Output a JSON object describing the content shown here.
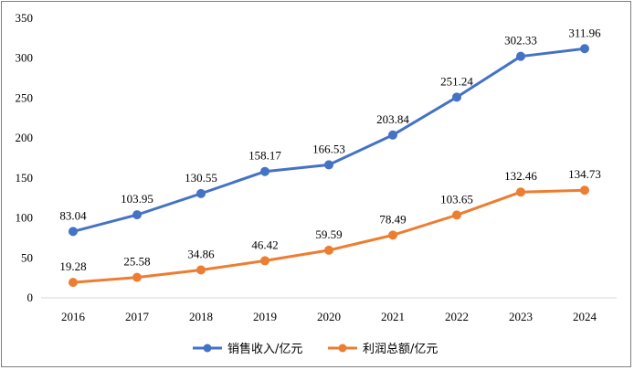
{
  "chart_data": {
    "type": "line",
    "title": "",
    "xlabel": "",
    "ylabel": "",
    "categories": [
      "2016",
      "2017",
      "2018",
      "2019",
      "2020",
      "2021",
      "2022",
      "2023",
      "2024"
    ],
    "ylim": [
      0,
      350
    ],
    "yticks": [
      0,
      50,
      100,
      150,
      200,
      250,
      300,
      350
    ],
    "grid": false,
    "legend_position": "bottom",
    "series": [
      {
        "name": "销售收入/亿元",
        "color": "#4472c4",
        "values": [
          83.04,
          103.95,
          130.55,
          158.17,
          166.53,
          203.84,
          251.24,
          302.33,
          311.96
        ],
        "labels": [
          "83.04",
          "103.95",
          "130.55",
          "158.17",
          "166.53",
          "203.84",
          "251.24",
          "302.33",
          "311.96"
        ]
      },
      {
        "name": "利润总额/亿元",
        "color": "#ed7d31",
        "values": [
          19.28,
          25.58,
          34.86,
          46.42,
          59.59,
          78.49,
          103.65,
          132.46,
          134.73
        ],
        "labels": [
          "19.28",
          "25.58",
          "34.86",
          "46.42",
          "59.59",
          "78.49",
          "103.65",
          "132.46",
          "134.73"
        ]
      }
    ]
  }
}
